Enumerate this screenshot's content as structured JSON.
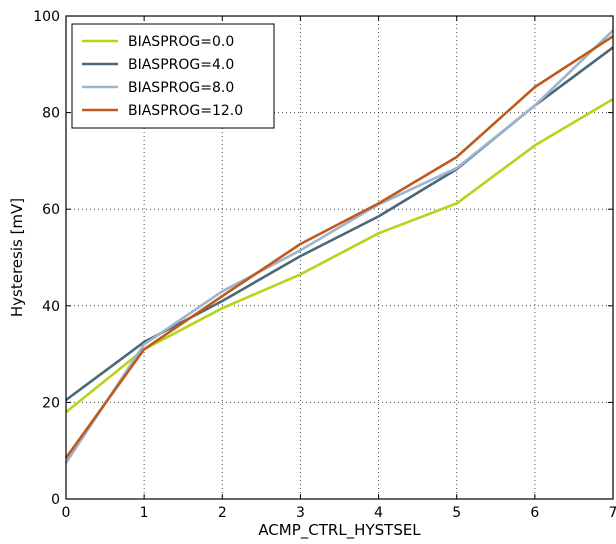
{
  "chart_data": {
    "type": "line",
    "title": "",
    "xlabel": "ACMP_CTRL_HYSTSEL",
    "ylabel": "Hysteresis [mV]",
    "xlim": [
      0,
      7
    ],
    "ylim": [
      0,
      100
    ],
    "xticks": [
      "0",
      "1",
      "2",
      "3",
      "4",
      "5",
      "6",
      "7"
    ],
    "yticks": [
      "0",
      "20",
      "40",
      "60",
      "80",
      "100"
    ],
    "grid": true,
    "legend_position": "top-left",
    "x": [
      0,
      1,
      2,
      3,
      4,
      5,
      6,
      7
    ],
    "series": [
      {
        "name": "BIASPROG=0.0",
        "color": "#b5d41a",
        "values": [
          18.0,
          31.0,
          39.5,
          46.5,
          55.0,
          61.2,
          73.2,
          82.8
        ]
      },
      {
        "name": "BIASPROG=4.0",
        "color": "#4a6878",
        "values": [
          20.5,
          32.5,
          41.0,
          50.3,
          58.5,
          68.3,
          81.5,
          93.5
        ]
      },
      {
        "name": "BIASPROG=8.0",
        "color": "#9db4cf",
        "values": [
          7.5,
          32.0,
          43.0,
          51.5,
          61.0,
          68.5,
          81.5,
          97.0
        ]
      },
      {
        "name": "BIASPROG=12.0",
        "color": "#c05a1c",
        "values": [
          8.5,
          31.0,
          42.0,
          52.8,
          61.2,
          70.8,
          85.3,
          95.8
        ]
      }
    ]
  }
}
